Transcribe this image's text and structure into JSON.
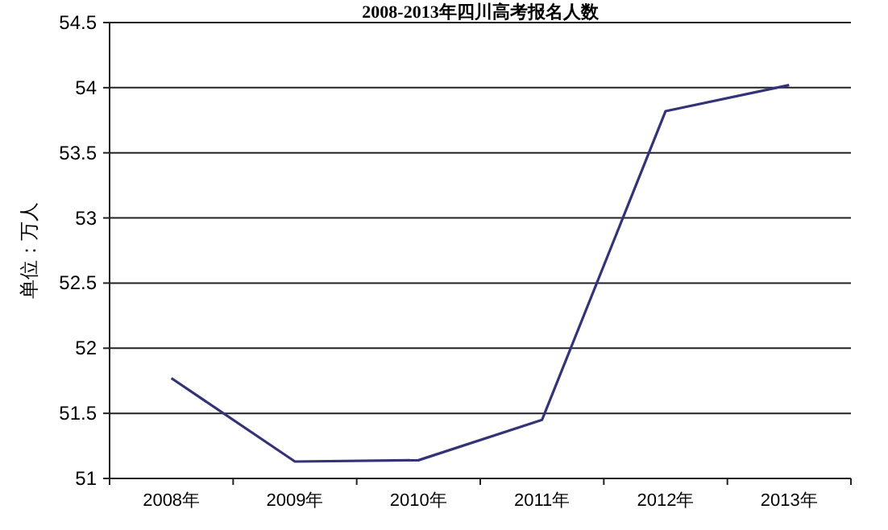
{
  "chart_data": {
    "type": "line",
    "title": "2008-2013年四川高考报名人数",
    "ylabel": "单位：万人",
    "categories": [
      "2008年",
      "2009年",
      "2010年",
      "2011年",
      "2012年",
      "2013年"
    ],
    "series": [
      {
        "color": "#333377",
        "values": [
          51.77,
          51.13,
          51.14,
          51.45,
          53.82,
          54.02
        ]
      }
    ],
    "ylim": [
      51,
      54.5
    ],
    "yticks": [
      51,
      51.5,
      52,
      52.5,
      53,
      53.5,
      54,
      54.5
    ],
    "grid": "y",
    "marker": "none",
    "line_style": "solid"
  }
}
